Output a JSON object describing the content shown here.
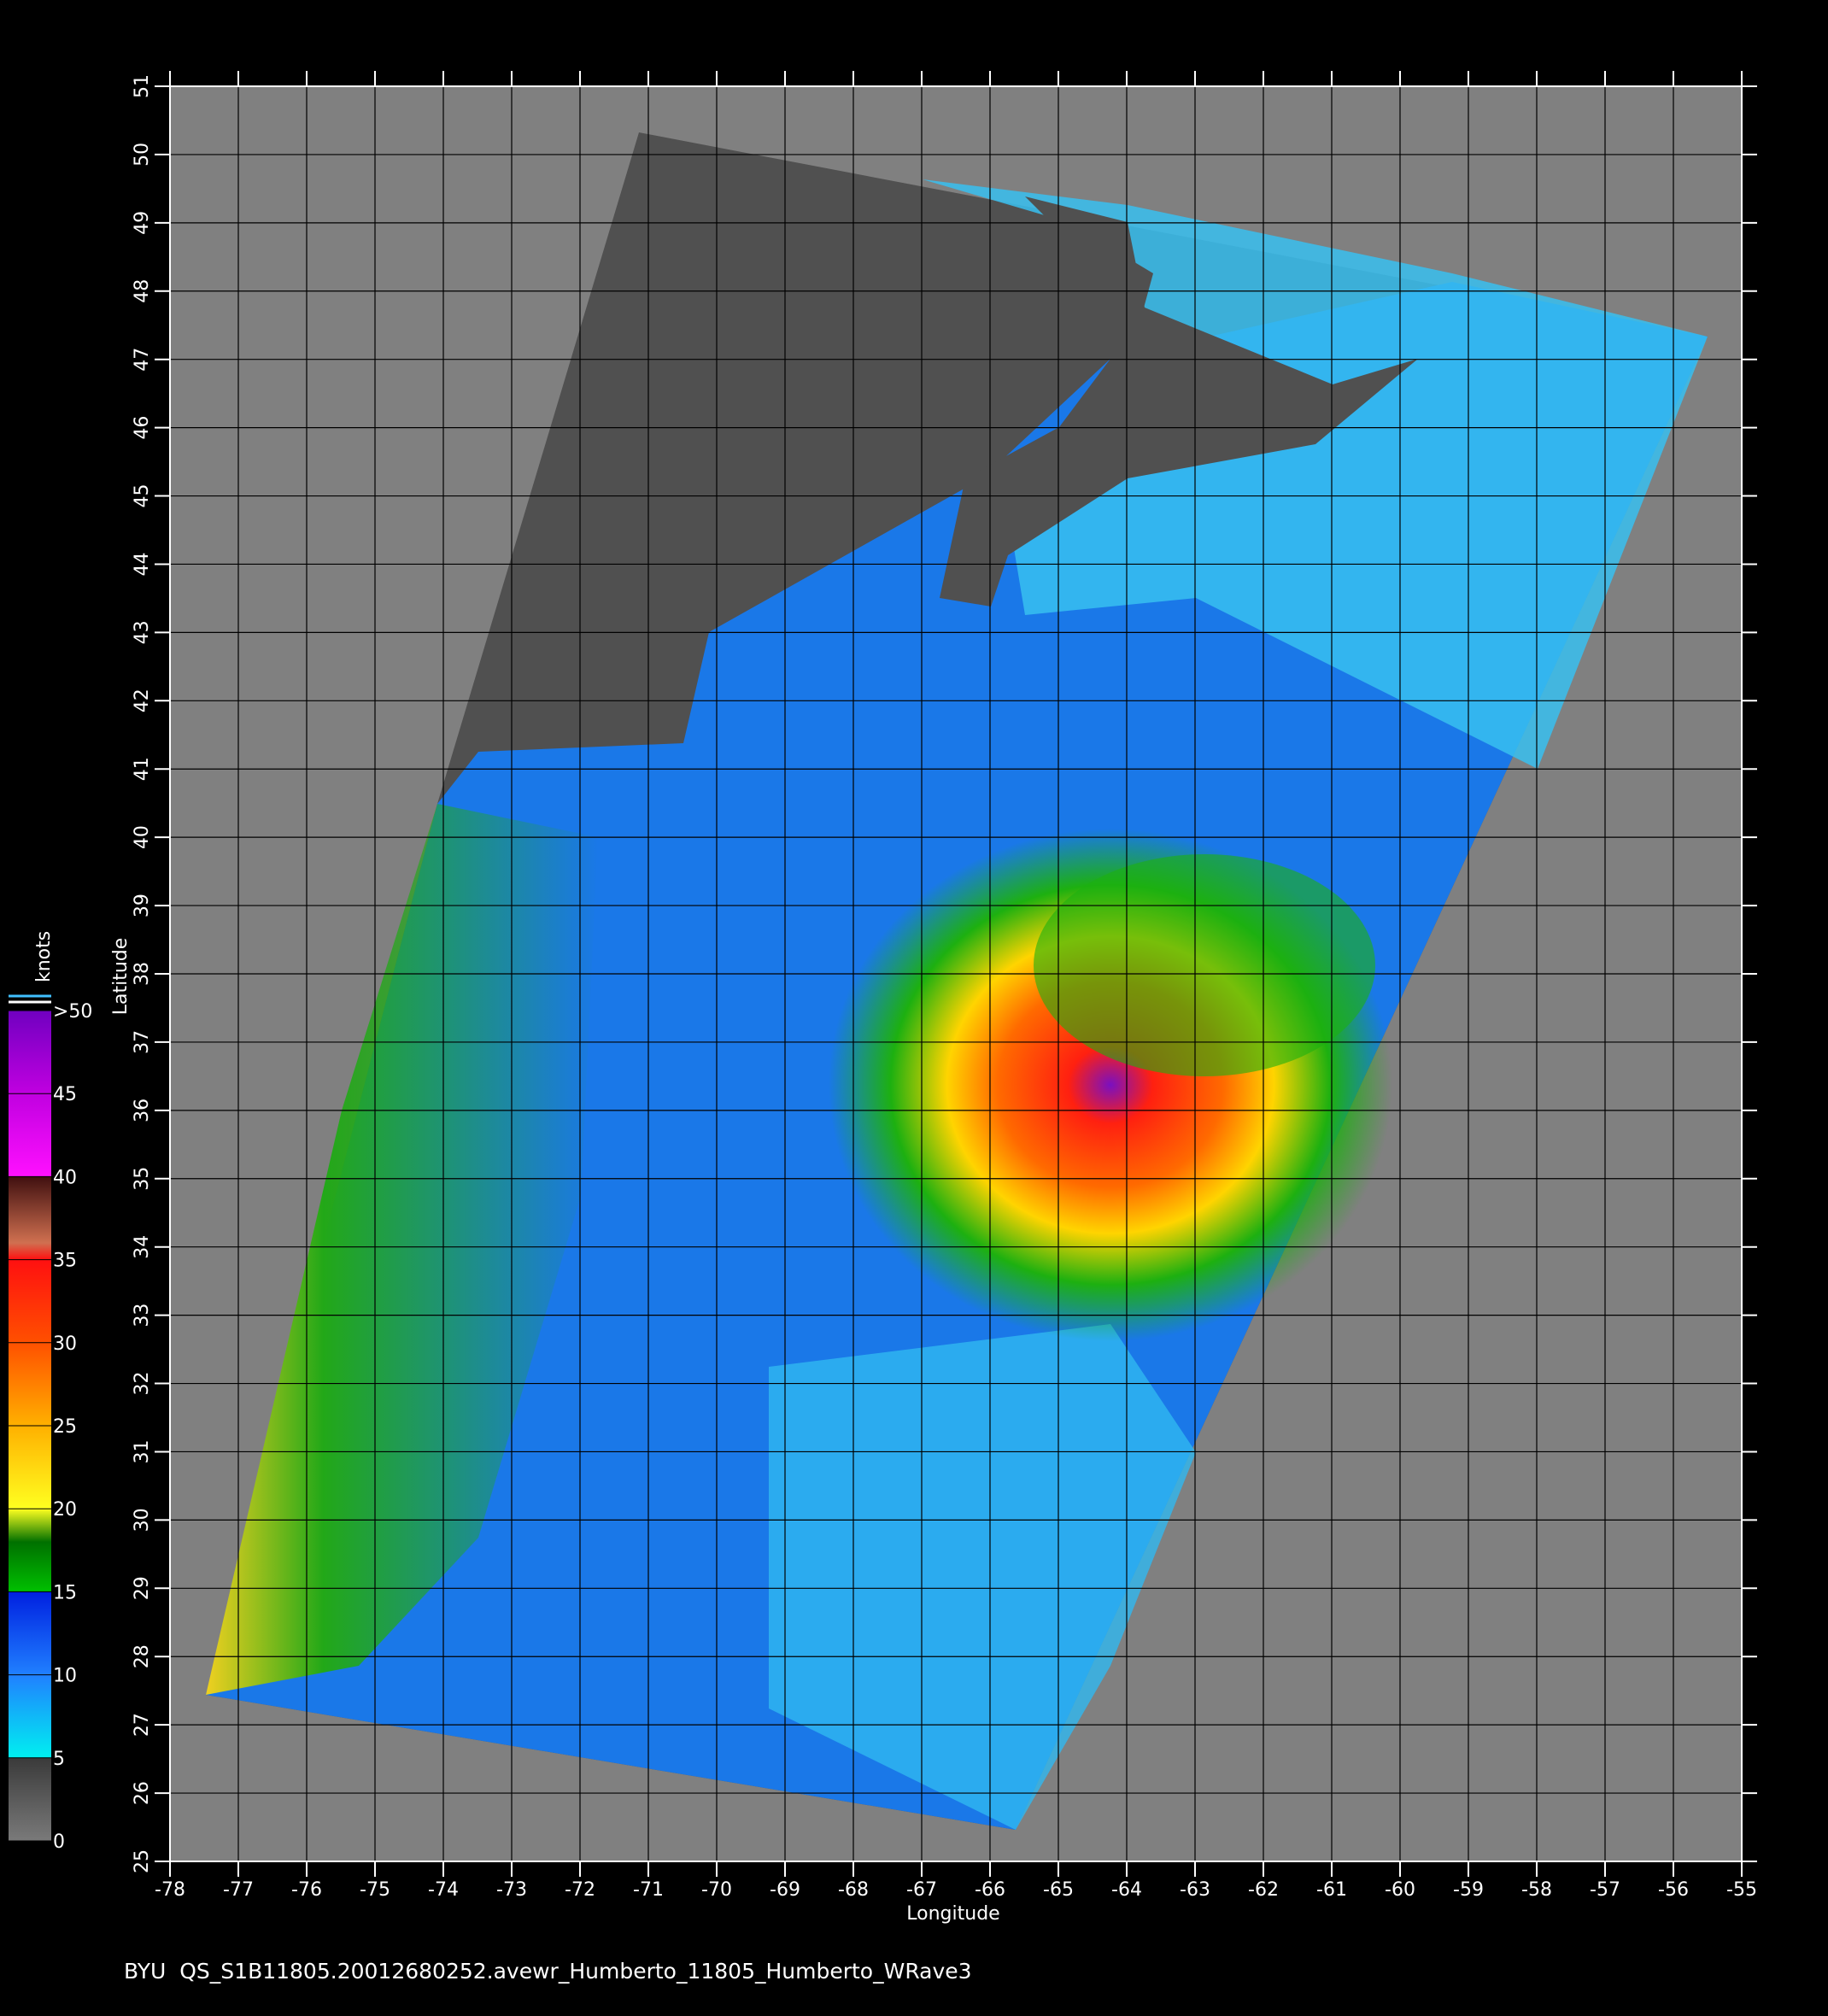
{
  "map": {
    "x_label": "Longitude",
    "y_label": "Latitude",
    "xlim": [
      -78,
      -55
    ],
    "ylim": [
      25,
      51
    ],
    "xticks": [
      -78,
      -77,
      -76,
      -75,
      -74,
      -73,
      -72,
      -71,
      -70,
      -69,
      -68,
      -67,
      -66,
      -65,
      -64,
      -63,
      -62,
      -61,
      -60,
      -59,
      -58,
      -57,
      -56,
      -55
    ],
    "yticks": [
      25,
      26,
      27,
      28,
      29,
      30,
      31,
      32,
      33,
      34,
      35,
      36,
      37,
      38,
      39,
      40,
      41,
      42,
      43,
      44,
      45,
      46,
      47,
      48,
      49,
      50,
      51
    ],
    "grid": true
  },
  "colorbar": {
    "title": "knots",
    "range": [
      0,
      50
    ],
    "ticks": [
      0,
      5,
      10,
      15,
      20,
      25,
      30,
      35,
      40,
      45,
      {
        "value": 50,
        "label": ">50"
      }
    ]
  },
  "footer": "BYU  QS_S1B11805.20012680252.avewr_Humberto_11805_Humberto_WRave3"
}
